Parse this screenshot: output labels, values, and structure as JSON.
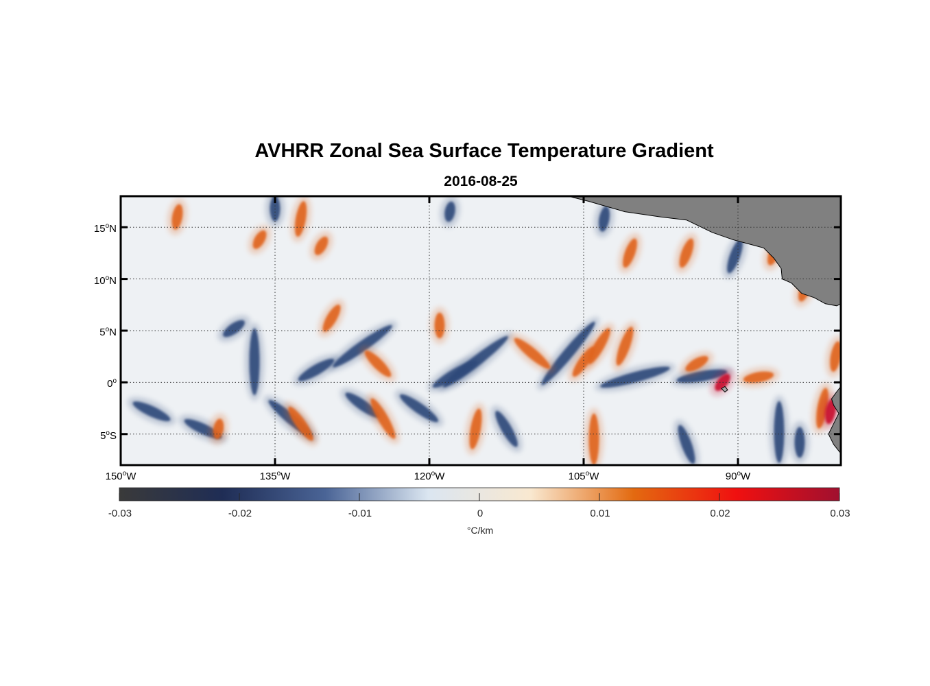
{
  "title": "AVHRR Zonal Sea Surface Temperature Gradient",
  "subtitle": "2016-08-25",
  "lat_ticks": [
    {
      "value": 15,
      "num": "15",
      "sup": "o",
      "hemi": "N"
    },
    {
      "value": 10,
      "num": "10",
      "sup": "o",
      "hemi": "N"
    },
    {
      "value": 5,
      "num": "5",
      "sup": "o",
      "hemi": "N"
    },
    {
      "value": 0,
      "num": "0",
      "sup": "o",
      "hemi": ""
    },
    {
      "value": -5,
      "num": "5",
      "sup": "o",
      "hemi": "S"
    }
  ],
  "lon_ticks": [
    {
      "value": -150,
      "num": "150",
      "sup": "o",
      "hemi": "W"
    },
    {
      "value": -135,
      "num": "135",
      "sup": "o",
      "hemi": "W"
    },
    {
      "value": -120,
      "num": "120",
      "sup": "o",
      "hemi": "W"
    },
    {
      "value": -105,
      "num": "105",
      "sup": "o",
      "hemi": "W"
    },
    {
      "value": -90,
      "num": "90",
      "sup": "o",
      "hemi": "W"
    }
  ],
  "map_extent": {
    "lon_min": -150,
    "lon_max": -80,
    "lat_min": -8,
    "lat_max": 18
  },
  "colorbar": {
    "min": -0.03,
    "max": 0.03,
    "tick_labels": [
      "-0.03",
      "-0.02",
      "-0.01",
      "0",
      "0.01",
      "0.02",
      "0.03"
    ],
    "units": "°C/km",
    "colors": [
      "#3a3a3a",
      "#1f2d55",
      "#4a6496",
      "#dbe6f1",
      "#f9e8d0",
      "#e36a10",
      "#f01010",
      "#a0102f"
    ]
  },
  "land_color": "#808080",
  "anomalies": [
    {
      "kind": "neg",
      "lon": -137.0,
      "lat": 2.0,
      "len": 6.5,
      "angle": 90
    },
    {
      "kind": "neg",
      "lon": -139.0,
      "lat": 5.2,
      "len": 2.5,
      "angle": 35
    },
    {
      "kind": "neg",
      "lon": -126.5,
      "lat": 3.5,
      "len": 7,
      "angle": 35
    },
    {
      "kind": "neg",
      "lon": -131.0,
      "lat": 1.2,
      "len": 4,
      "angle": 30
    },
    {
      "kind": "neg",
      "lon": -115.5,
      "lat": 2.0,
      "len": 8,
      "angle": 38
    },
    {
      "kind": "neg",
      "lon": -117.5,
      "lat": 0.8,
      "len": 5,
      "angle": 30
    },
    {
      "kind": "neg",
      "lon": -106.5,
      "lat": 2.8,
      "len": 8,
      "angle": 50
    },
    {
      "kind": "neg",
      "lon": -100.0,
      "lat": 0.5,
      "len": 7,
      "angle": 15
    },
    {
      "kind": "neg",
      "lon": -93.5,
      "lat": 0.6,
      "len": 5,
      "angle": 10
    },
    {
      "kind": "neg",
      "lon": -147.0,
      "lat": -2.8,
      "len": 4,
      "angle": -25
    },
    {
      "kind": "neg",
      "lon": -142.0,
      "lat": -4.5,
      "len": 4,
      "angle": -25
    },
    {
      "kind": "neg",
      "lon": -133.5,
      "lat": -3.5,
      "len": 5.5,
      "angle": -40
    },
    {
      "kind": "neg",
      "lon": -126.5,
      "lat": -2.2,
      "len": 4,
      "angle": -35
    },
    {
      "kind": "neg",
      "lon": -121.0,
      "lat": -2.5,
      "len": 4.5,
      "angle": -35
    },
    {
      "kind": "neg",
      "lon": -112.5,
      "lat": -4.5,
      "len": 4,
      "angle": -60
    },
    {
      "kind": "neg",
      "lon": -95.0,
      "lat": -6.0,
      "len": 4,
      "angle": -70
    },
    {
      "kind": "neg",
      "lon": -86.0,
      "lat": -4.8,
      "len": 6,
      "angle": 90
    },
    {
      "kind": "neg",
      "lon": -84.0,
      "lat": -5.8,
      "len": 3,
      "angle": 90
    },
    {
      "kind": "neg",
      "lon": -90.3,
      "lat": 12.2,
      "len": 3.5,
      "angle": 70
    },
    {
      "kind": "neg",
      "lon": -135.0,
      "lat": 16.8,
      "len": 2.5,
      "angle": 90
    },
    {
      "kind": "neg",
      "lon": -118.0,
      "lat": 16.5,
      "len": 2,
      "angle": 80
    },
    {
      "kind": "neg",
      "lon": -103.0,
      "lat": 15.8,
      "len": 2.5,
      "angle": 80
    },
    {
      "kind": "pos",
      "lon": -132.5,
      "lat": 15.8,
      "len": 3.5,
      "angle": 80
    },
    {
      "kind": "pos",
      "lon": -144.5,
      "lat": 16.0,
      "len": 2.5,
      "angle": 80
    },
    {
      "kind": "pos",
      "lon": -119.0,
      "lat": 5.5,
      "len": 2.5,
      "angle": 90
    },
    {
      "kind": "pos",
      "lon": -110.0,
      "lat": 2.8,
      "len": 4.5,
      "angle": -40
    },
    {
      "kind": "pos",
      "lon": -103.5,
      "lat": 3.5,
      "len": 4,
      "angle": 60
    },
    {
      "kind": "pos",
      "lon": -101.0,
      "lat": 3.5,
      "len": 4,
      "angle": 70
    },
    {
      "kind": "pos",
      "lon": -105.0,
      "lat": 2.0,
      "len": 3.5,
      "angle": 55
    },
    {
      "kind": "pos",
      "lon": -125.0,
      "lat": 1.8,
      "len": 3.5,
      "angle": -45
    },
    {
      "kind": "pos",
      "lon": -129.5,
      "lat": 6.2,
      "len": 3,
      "angle": 60
    },
    {
      "kind": "pos",
      "lon": -132.5,
      "lat": -4.0,
      "len": 4,
      "angle": -55
    },
    {
      "kind": "pos",
      "lon": -124.5,
      "lat": -3.5,
      "len": 4.5,
      "angle": -60
    },
    {
      "kind": "pos",
      "lon": -115.5,
      "lat": -4.5,
      "len": 4,
      "angle": 80
    },
    {
      "kind": "pos",
      "lon": -104.0,
      "lat": -5.5,
      "len": 5,
      "angle": 90
    },
    {
      "kind": "pos",
      "lon": -100.5,
      "lat": 12.5,
      "len": 3,
      "angle": 70
    },
    {
      "kind": "pos",
      "lon": -95.0,
      "lat": 12.5,
      "len": 3,
      "angle": 70
    },
    {
      "kind": "pos",
      "lon": -86.5,
      "lat": 12.5,
      "len": 2.5,
      "angle": 70
    },
    {
      "kind": "pos",
      "lon": -83.5,
      "lat": 9.0,
      "len": 2.5,
      "angle": 70
    },
    {
      "kind": "pos",
      "lon": -94.0,
      "lat": 1.8,
      "len": 2.5,
      "angle": 30
    },
    {
      "kind": "pos",
      "lon": -88.0,
      "lat": 0.5,
      "len": 3,
      "angle": 10
    },
    {
      "kind": "pos",
      "lon": -81.8,
      "lat": -2.5,
      "len": 4,
      "angle": 80
    },
    {
      "kind": "pos",
      "lon": -80.5,
      "lat": 2.5,
      "len": 3,
      "angle": 80
    },
    {
      "kind": "pos",
      "lon": -140.5,
      "lat": -4.5,
      "len": 2,
      "angle": 80
    },
    {
      "kind": "pos",
      "lon": -130.5,
      "lat": 13.2,
      "len": 2,
      "angle": 60
    },
    {
      "kind": "pos",
      "lon": -136.5,
      "lat": 13.8,
      "len": 2,
      "angle": 60
    },
    {
      "kind": "strong",
      "lon": -91.5,
      "lat": 0.0,
      "len": 2,
      "angle": 50
    },
    {
      "kind": "strong",
      "lon": -81.0,
      "lat": -2.8,
      "len": 2.5,
      "angle": 80
    }
  ]
}
